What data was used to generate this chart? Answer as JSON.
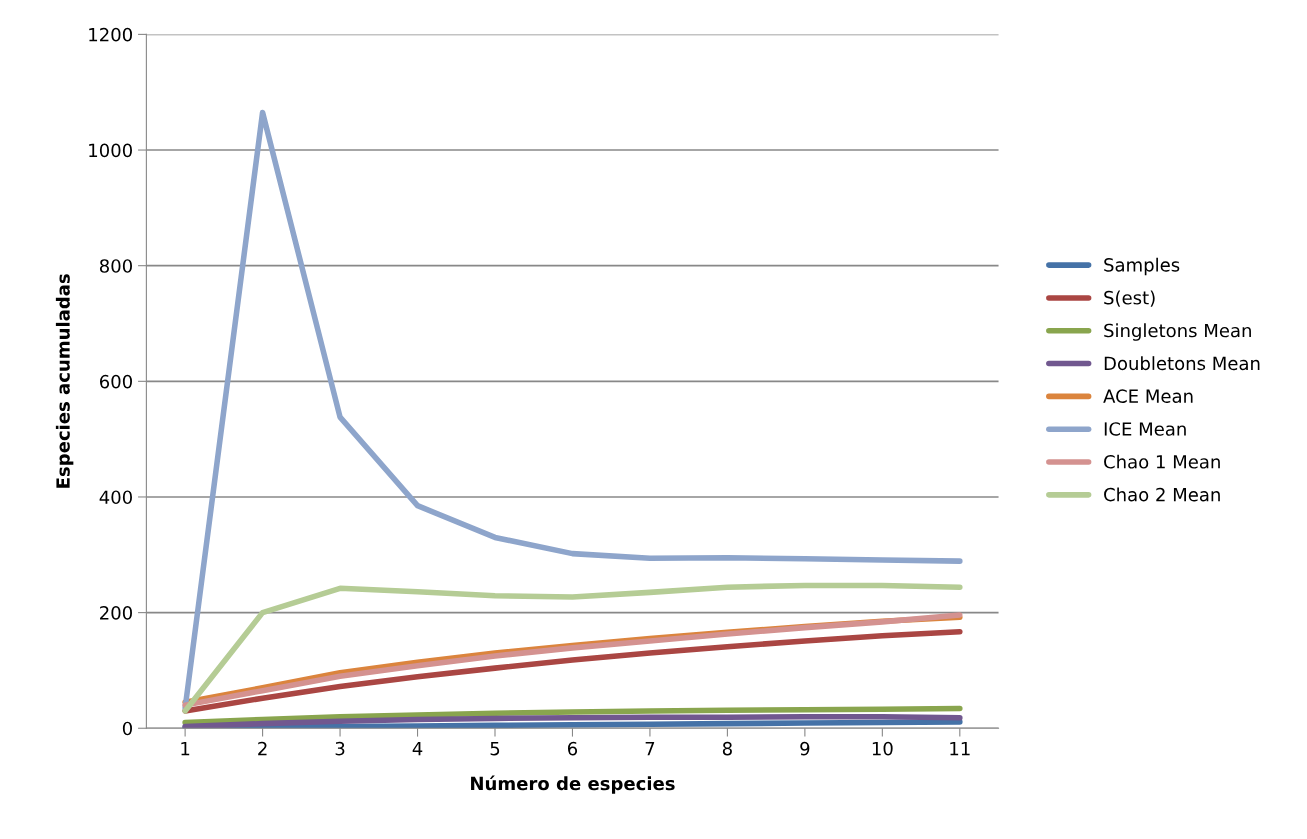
{
  "chart_data": {
    "type": "line",
    "xlabel": "Número de especies",
    "ylabel": "Especies acumuladas",
    "categories": [
      "1",
      "2",
      "3",
      "4",
      "5",
      "6",
      "7",
      "8",
      "9",
      "10",
      "11"
    ],
    "ylim": [
      0,
      1200
    ],
    "yticks": [
      0,
      200,
      400,
      600,
      800,
      1000,
      1200
    ],
    "grid": "y",
    "legend": "right",
    "marker": "none",
    "line_style": "solid",
    "series": [
      {
        "name": "Samples",
        "color": "#4572a7",
        "values": [
          1,
          2,
          3,
          4,
          5,
          6,
          7,
          8,
          9,
          10,
          11
        ]
      },
      {
        "name": "S(est)",
        "color": "#aa4643",
        "values": [
          30,
          52,
          72,
          89,
          104,
          118,
          130,
          141,
          151,
          160,
          167
        ]
      },
      {
        "name": "Singletons Mean",
        "color": "#89a54e",
        "values": [
          10,
          15,
          20,
          23,
          26,
          28,
          30,
          31,
          32,
          33,
          34
        ]
      },
      {
        "name": "Doubletons Mean",
        "color": "#71588f",
        "values": [
          3,
          8,
          12,
          15,
          17,
          18,
          19,
          19,
          20,
          20,
          18
        ]
      },
      {
        "name": "ACE Mean",
        "color": "#db843d",
        "values": [
          45,
          70,
          96,
          114,
          130,
          143,
          155,
          166,
          176,
          185,
          192
        ]
      },
      {
        "name": "ICE Mean",
        "color": "#8ea5cb",
        "values": [
          35,
          1065,
          538,
          385,
          330,
          302,
          294,
          295,
          293,
          291,
          289
        ]
      },
      {
        "name": "Chao 1 Mean",
        "color": "#d49290",
        "values": [
          40,
          65,
          90,
          108,
          125,
          139,
          151,
          163,
          174,
          184,
          196
        ]
      },
      {
        "name": "Chao 2 Mean",
        "color": "#b5cc95",
        "values": [
          30,
          200,
          242,
          236,
          229,
          227,
          235,
          244,
          247,
          247,
          244
        ]
      }
    ]
  }
}
